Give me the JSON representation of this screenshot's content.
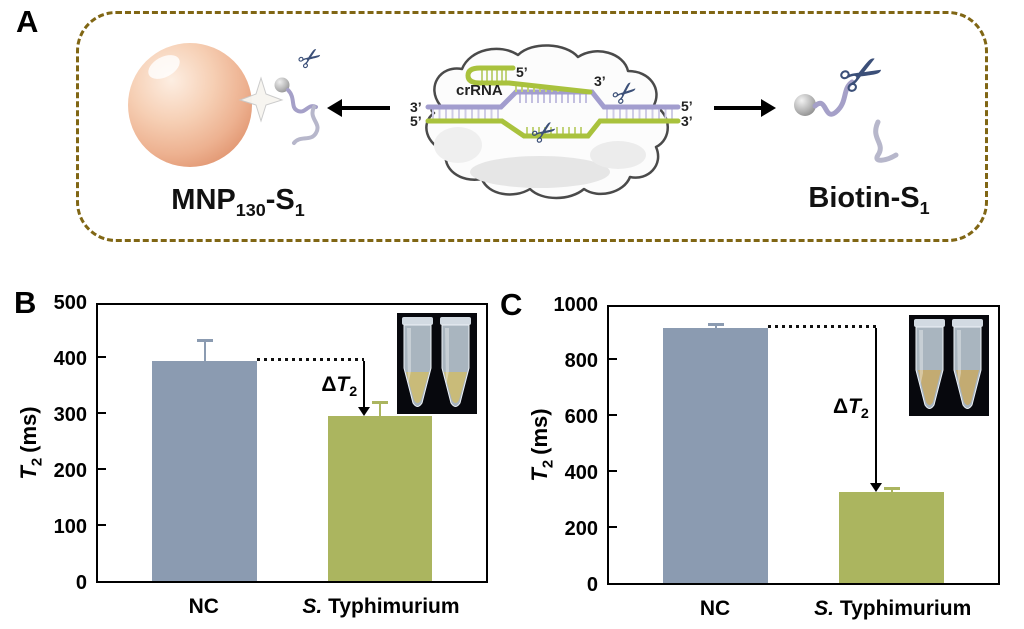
{
  "page": {
    "background": "#ffffff"
  },
  "icons": {
    "scissors": "✂"
  },
  "panel_a": {
    "label": "A",
    "border_color": "#806614",
    "left_caption": {
      "base": "MNP",
      "sub_size": "130",
      "dash": "-S",
      "sub_strand": "1"
    },
    "right_caption": {
      "base": "Biotin-S",
      "sub": "1"
    },
    "center": {
      "crrna_label": "crRNA",
      "hairpin_five": "5’",
      "guide_three": "3’",
      "left_three": "3’",
      "left_five": "5’",
      "right_five": "5’",
      "right_three": "3’"
    }
  },
  "chart_data": [
    {
      "type": "bar",
      "panel_label": "B",
      "categories": [
        "NC",
        "S. Typhimurium"
      ],
      "categories_styled": [
        {
          "italic": "",
          "rest": "NC"
        },
        {
          "italic": "S.",
          "rest": " Typhimurium"
        }
      ],
      "values": [
        393,
        295
      ],
      "errors": [
        34,
        21
      ],
      "bar_colors": [
        "#8b9bb1",
        "#abb55f"
      ],
      "error_colors": [
        "#8b9bb1",
        "#abb55f"
      ],
      "ylabel": "T2 (ms)",
      "ylabel_styled": {
        "symbol": "T",
        "subscript": "2",
        "unit": "(ms)"
      },
      "ylim": [
        0,
        500
      ],
      "yticks": [
        0,
        100,
        200,
        300,
        400,
        500
      ],
      "grid": false,
      "legend": "none",
      "annotation": {
        "text": "ΔT2",
        "delta": "Δ",
        "symbol": "T",
        "subscript": "2"
      },
      "inset": {
        "type": "photo",
        "content": "two microcentrifuge tubes",
        "liquid_color": "#c9bb79"
      }
    },
    {
      "type": "bar",
      "panel_label": "C",
      "categories": [
        "NC",
        "S. Typhimurium"
      ],
      "categories_styled": [
        {
          "italic": "",
          "rest": "NC"
        },
        {
          "italic": "S.",
          "rest": " Typhimurium"
        }
      ],
      "values": [
        910,
        325
      ],
      "errors": [
        8,
        8
      ],
      "bar_colors": [
        "#8b9bb1",
        "#abb55f"
      ],
      "error_colors": [
        "#8b9bb1",
        "#abb55f"
      ],
      "ylabel": "T2 (ms)",
      "ylabel_styled": {
        "symbol": "T",
        "subscript": "2",
        "unit": "(ms)"
      },
      "ylim": [
        0,
        1000
      ],
      "yticks": [
        0,
        200,
        400,
        600,
        800,
        1000
      ],
      "grid": false,
      "legend": "none",
      "annotation": {
        "text": "ΔT2",
        "delta": "Δ",
        "symbol": "T",
        "subscript": "2"
      },
      "inset": {
        "type": "photo",
        "content": "two microcentrifuge tubes",
        "liquid_color": "#c3ab72"
      }
    }
  ]
}
